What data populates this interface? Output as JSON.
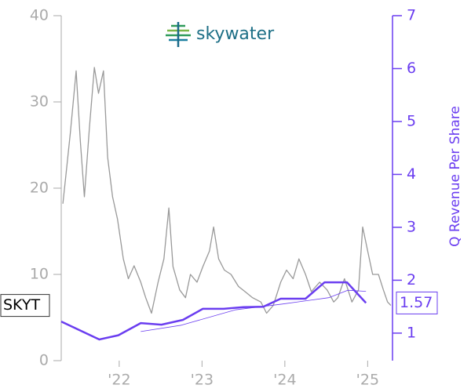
{
  "chart_data": {
    "type": "line",
    "logo_text": "skywater",
    "ticker": "SKYT",
    "y2_label": "Q Revenue Per Share",
    "xlim": [
      2021.3,
      2025.3
    ],
    "xticks": [
      {
        "value": 2022,
        "label": "'22"
      },
      {
        "value": 2023,
        "label": "'23"
      },
      {
        "value": 2024,
        "label": "'24"
      },
      {
        "value": 2025,
        "label": "'25"
      }
    ],
    "ylim": [
      0,
      40
    ],
    "yticks": [
      0,
      10,
      20,
      30,
      40
    ],
    "y2lim": [
      0.48,
      7
    ],
    "y2ticks": [
      1,
      2,
      3,
      4,
      5,
      6,
      7
    ],
    "series": [
      {
        "color": "#999999",
        "x": [
          2021.32,
          2021.36,
          2021.41,
          2021.48,
          2021.53,
          2021.58,
          2021.64,
          2021.7,
          2021.75,
          2021.81,
          2021.86,
          2021.92,
          2021.98,
          2022.05,
          2022.11,
          2022.18,
          2022.26,
          2022.32,
          2022.39,
          2022.47,
          2022.54,
          2022.6,
          2022.65,
          2022.73,
          2022.8,
          2022.86,
          2022.94,
          2023.01,
          2023.09,
          2023.14,
          2023.2,
          2023.27,
          2023.35,
          2023.44,
          2023.52,
          2023.61,
          2023.71,
          2023.78,
          2023.86,
          2023.95,
          2024.02,
          2024.1,
          2024.17,
          2024.25,
          2024.32,
          2024.42,
          2024.51,
          2024.59,
          2024.64,
          2024.72,
          2024.81,
          2024.89,
          2024.94,
          2025.0,
          2025.06,
          2025.13,
          2025.19,
          2025.24,
          2025.28
        ],
        "values": [
          18.2,
          21.8,
          26.4,
          33.6,
          25.5,
          19,
          27,
          34,
          31,
          33.6,
          23.6,
          19,
          16.4,
          11.8,
          9.5,
          11,
          9.1,
          7.3,
          5.5,
          9.1,
          11.8,
          17.7,
          10.9,
          8.2,
          7.3,
          10,
          9.1,
          10.9,
          12.7,
          15.5,
          11.8,
          10.5,
          10,
          8.6,
          8,
          7.3,
          6.8,
          5.5,
          6.4,
          9.1,
          10.5,
          9.5,
          11.8,
          10,
          8,
          9.1,
          8.2,
          6.8,
          7.3,
          9.5,
          6.8,
          8.2,
          15.5,
          12.7,
          10,
          10,
          8.2,
          6.8,
          6.4
        ]
      },
      {
        "color": "#6a3df0",
        "axis": "y2",
        "width": 2.5,
        "x": [
          2021.3,
          2021.76,
          2021.99,
          2022.26,
          2022.51,
          2022.77,
          2023.01,
          2023.26,
          2023.5,
          2023.74,
          2023.95,
          2024.25,
          2024.48,
          2024.75,
          2024.98
        ],
        "values": [
          1.22,
          0.88,
          0.96,
          1.19,
          1.16,
          1.25,
          1.46,
          1.46,
          1.49,
          1.5,
          1.65,
          1.65,
          1.96,
          1.96,
          1.57
        ]
      },
      {
        "color": "#6a3df0",
        "axis": "y2",
        "width": 0.8,
        "x": [
          2022.26,
          2022.75,
          2023.4,
          2023.97,
          2024.53,
          2024.76,
          2024.98
        ],
        "values": [
          1.03,
          1.15,
          1.44,
          1.55,
          1.67,
          1.81,
          1.79
        ]
      }
    ]
  }
}
